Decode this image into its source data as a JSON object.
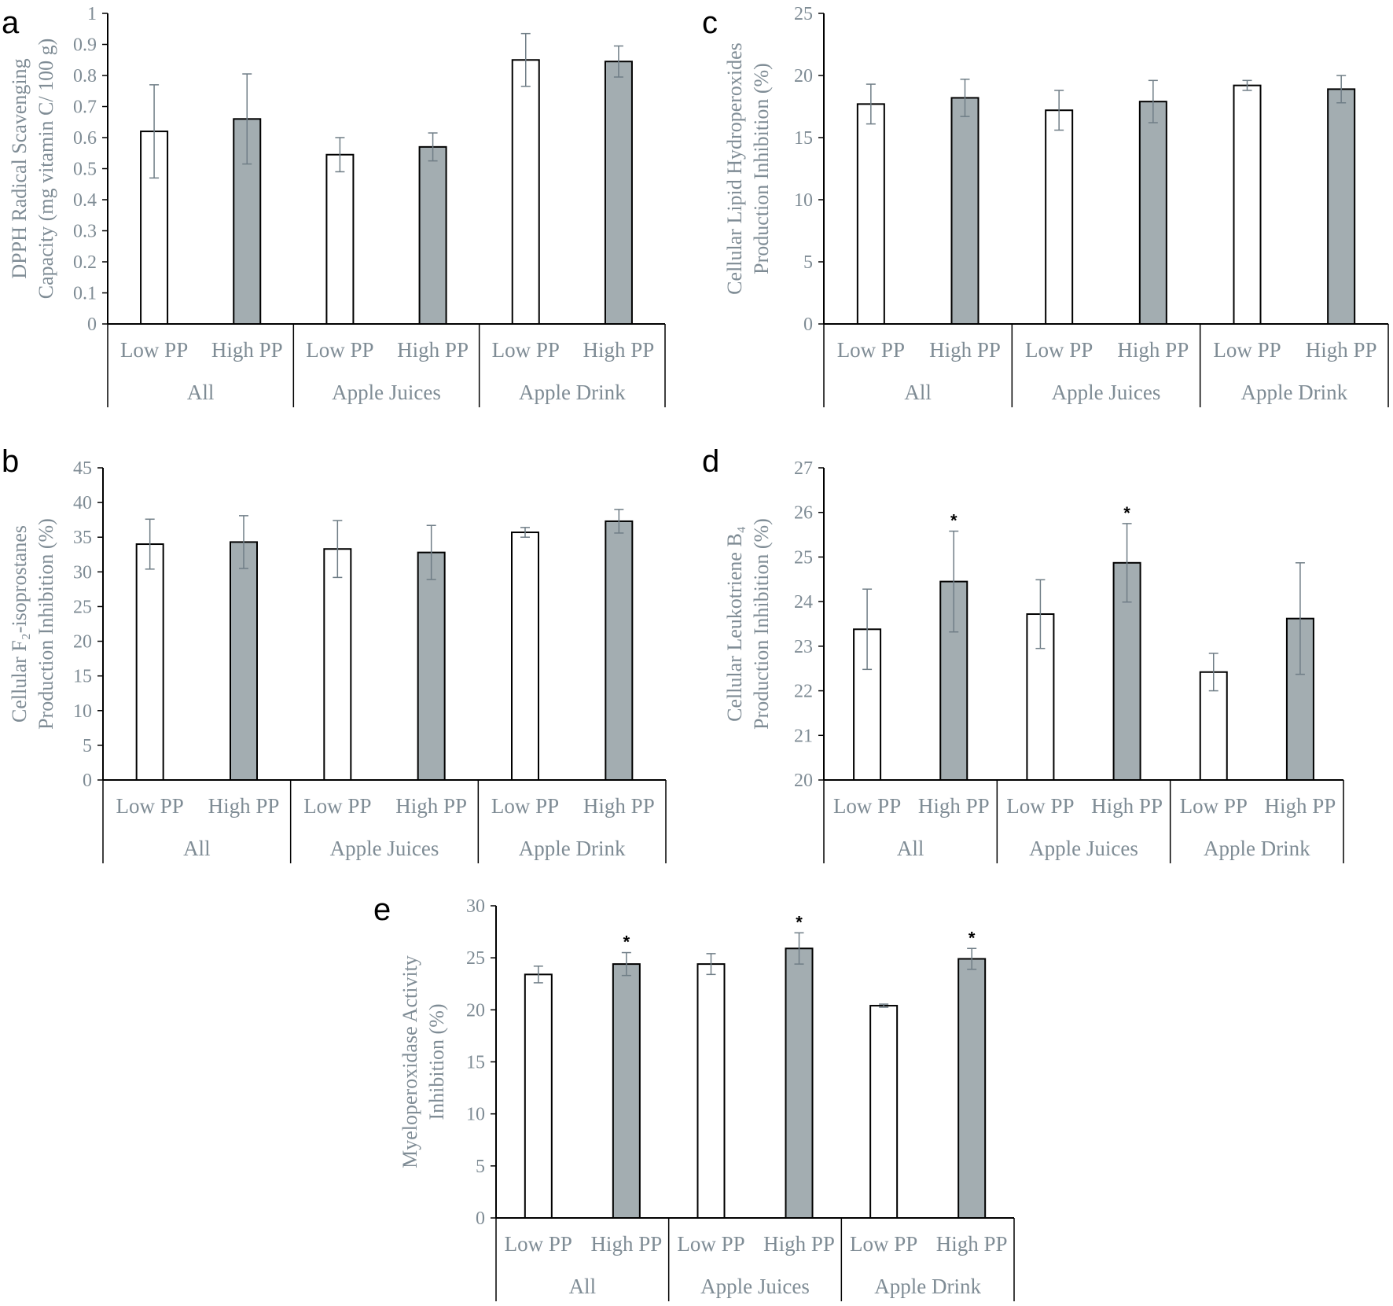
{
  "colors": {
    "low_fill": "#ffffff",
    "high_fill": "#a3adb1",
    "bar_stroke": "#000000",
    "error_bar": "#6f7d86",
    "axis": "#000000",
    "text": "#7f8c95"
  },
  "chart_data": [
    {
      "panel": "a",
      "type": "bar",
      "groups": [
        "All",
        "Apple Juices",
        "Apple Drink"
      ],
      "subcategories": [
        "Low PP",
        "High PP",
        "Low PP",
        "High PP",
        "Low PP",
        "High PP"
      ],
      "values": [
        0.62,
        0.66,
        0.545,
        0.57,
        0.85,
        0.845
      ],
      "errors": [
        0.15,
        0.145,
        0.055,
        0.045,
        0.085,
        0.05
      ],
      "significant": [
        false,
        false,
        false,
        false,
        false,
        false
      ],
      "ylabel": [
        "DPPH Radical Scavenging",
        "Capacity (mg vitamin C/ 100 g)"
      ],
      "ylim": [
        0,
        1
      ],
      "yticks": [
        "0",
        "0.1",
        "0.2",
        "0.3",
        "0.4",
        "0.5",
        "0.6",
        "0.7",
        "0.8",
        "0.9",
        "1"
      ]
    },
    {
      "panel": "b",
      "type": "bar",
      "groups": [
        "All",
        "Apple Juices",
        "Apple Drink"
      ],
      "subcategories": [
        "Low PP",
        "High PP",
        "Low PP",
        "High PP",
        "Low PP",
        "High PP"
      ],
      "values": [
        34.0,
        34.3,
        33.3,
        32.8,
        35.7,
        37.3
      ],
      "errors": [
        3.6,
        3.8,
        4.1,
        3.9,
        0.7,
        1.7
      ],
      "significant": [
        false,
        false,
        false,
        false,
        false,
        false
      ],
      "ylabel": [
        "Cellular F₂-isoprostanes",
        "Production Inhibition (%)"
      ],
      "ylim": [
        0,
        45
      ],
      "yticks": [
        "0",
        "5",
        "10",
        "15",
        "20",
        "25",
        "30",
        "35",
        "40",
        "45"
      ]
    },
    {
      "panel": "c",
      "type": "bar",
      "groups": [
        "All",
        "Apple Juices",
        "Apple Drink"
      ],
      "subcategories": [
        "Low PP",
        "High PP",
        "Low PP",
        "High PP",
        "Low PP",
        "High PP"
      ],
      "values": [
        17.7,
        18.2,
        17.2,
        17.9,
        19.2,
        18.9
      ],
      "errors": [
        1.6,
        1.5,
        1.6,
        1.7,
        0.4,
        1.1
      ],
      "significant": [
        false,
        false,
        false,
        false,
        false,
        false
      ],
      "ylabel": [
        "Cellular Lipid Hydroperoxides",
        "Production Inhibition (%)"
      ],
      "ylim": [
        0,
        25
      ],
      "yticks": [
        "0",
        "5",
        "10",
        "15",
        "20",
        "25"
      ]
    },
    {
      "panel": "d",
      "type": "bar",
      "groups": [
        "All",
        "Apple Juices",
        "Apple Drink"
      ],
      "subcategories": [
        "Low PP",
        "High PP",
        "Low PP",
        "High PP",
        "Low PP",
        "High PP"
      ],
      "values": [
        23.38,
        24.45,
        23.72,
        24.87,
        22.42,
        23.62
      ],
      "errors": [
        0.9,
        1.13,
        0.77,
        0.88,
        0.42,
        1.25
      ],
      "significant": [
        false,
        true,
        false,
        true,
        false,
        false
      ],
      "ylabel": [
        "Cellular Leukotriene B₄",
        "Production Inhibition (%)"
      ],
      "ylim": [
        20,
        27
      ],
      "yticks": [
        "20",
        "21",
        "22",
        "23",
        "24",
        "25",
        "26",
        "27"
      ]
    },
    {
      "panel": "e",
      "type": "bar",
      "groups": [
        "All",
        "Apple Juices",
        "Apple Drink"
      ],
      "subcategories": [
        "Low PP",
        "High PP",
        "Low PP",
        "High PP",
        "Low PP",
        "High PP"
      ],
      "values": [
        23.4,
        24.4,
        24.4,
        25.9,
        20.4,
        24.9
      ],
      "errors": [
        0.8,
        1.1,
        1.0,
        1.5,
        0.15,
        1.0
      ],
      "significant": [
        false,
        true,
        false,
        true,
        false,
        true
      ],
      "ylabel": [
        "Myeloperoxidase Activity",
        "Inhibition (%)"
      ],
      "ylim": [
        0,
        30
      ],
      "yticks": [
        "0",
        "5",
        "10",
        "15",
        "20",
        "25",
        "30"
      ]
    }
  ],
  "significance_marker": "*"
}
